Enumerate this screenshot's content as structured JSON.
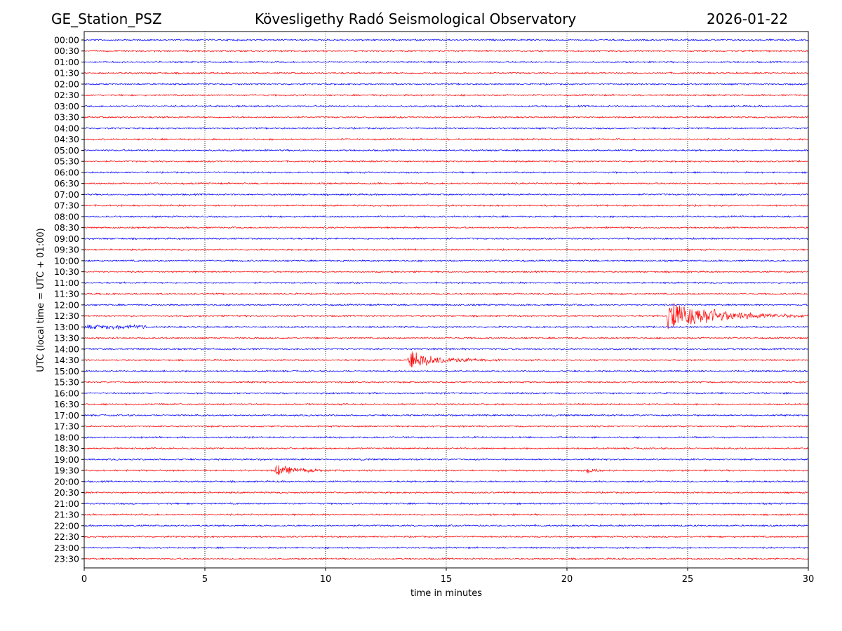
{
  "header": {
    "station": "GE_Station_PSZ",
    "title": "Kövesligethy Radó Seismological Observatory",
    "date": "2026-01-22"
  },
  "chart_data": {
    "type": "line",
    "title": "Kövesligethy Radó Seismological Observatory",
    "xlabel": "time in minutes",
    "ylabel": "UTC (local time = UTC + 01:00)",
    "xlim": [
      0,
      30
    ],
    "xticks": [
      0,
      5,
      10,
      15,
      20,
      25,
      30
    ],
    "grid": "vertical dotted lines at x ticks",
    "row_labels": [
      "00:00",
      "00:30",
      "01:00",
      "01:30",
      "02:00",
      "02:30",
      "03:00",
      "03:30",
      "04:00",
      "04:30",
      "05:00",
      "05:30",
      "06:00",
      "06:30",
      "07:00",
      "07:30",
      "08:00",
      "08:30",
      "09:00",
      "09:30",
      "10:00",
      "10:30",
      "11:00",
      "11:30",
      "12:00",
      "12:30",
      "13:00",
      "13:30",
      "14:00",
      "14:30",
      "15:00",
      "15:30",
      "16:00",
      "16:30",
      "17:00",
      "17:30",
      "18:00",
      "18:30",
      "19:00",
      "19:30",
      "20:00",
      "20:30",
      "21:00",
      "21:30",
      "22:00",
      "22:30",
      "23:00",
      "23:30"
    ],
    "row_colors": [
      "#0000ff",
      "#ff0000"
    ],
    "noise_amplitude_rows": 0.12,
    "events": [
      {
        "row": "12:30",
        "start_min": 24.15,
        "peak_amplitude_rows": 3.2,
        "duration_min": 6.5
      },
      {
        "row": "14:30",
        "start_min": 13.4,
        "peak_amplitude_rows": 2.0,
        "duration_min": 4.0
      },
      {
        "row": "19:30",
        "start_min": 7.9,
        "peak_amplitude_rows": 1.0,
        "duration_min": 3.0
      },
      {
        "row": "19:30",
        "start_min": 20.8,
        "peak_amplitude_rows": 0.6,
        "duration_min": 1.0
      },
      {
        "row": "13:00",
        "start_min": 0.0,
        "peak_amplitude_rows": 0.3,
        "duration_min": 2.6,
        "kind": "noise-burst"
      }
    ]
  }
}
